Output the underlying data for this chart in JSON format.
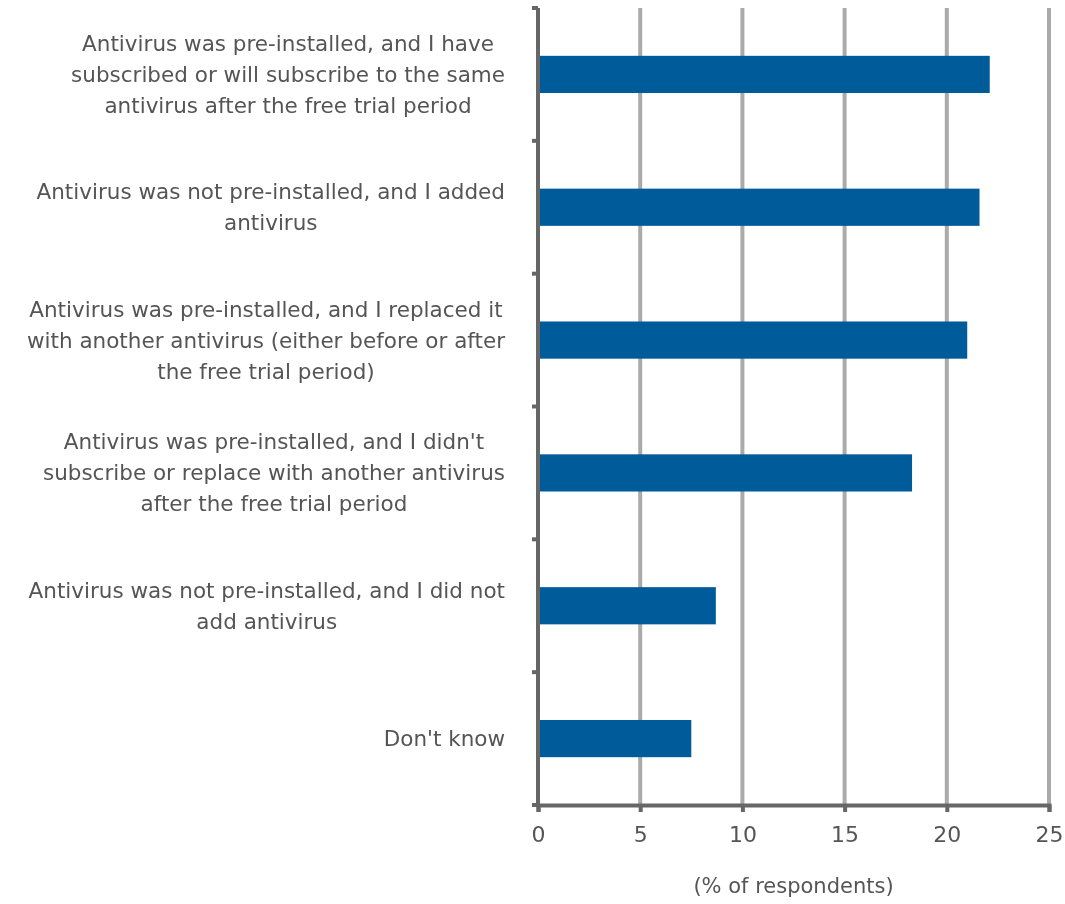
{
  "chart_data": {
    "type": "bar",
    "orientation": "horizontal",
    "xlabel": "(% of respondents)",
    "categories": [
      "Antivirus was pre-installed, and I have subscribed or will subscribe to the same antivirus after the free trial period",
      "Antivirus was not pre-installed, and I added antivirus",
      "Antivirus was pre-installed, and I replaced it with another antivirus (either before or after the free trial period)",
      "Antivirus was pre-installed, and I didn't subscribe or replace with another antivirus after the free trial period",
      "Antivirus was not pre-installed, and I did not add antivirus",
      "Don't know"
    ],
    "values": [
      22.1,
      21.6,
      21.0,
      18.3,
      8.7,
      7.5
    ],
    "color": "#005b9a",
    "xlim": [
      0,
      25
    ],
    "xticks": [
      0,
      5,
      10,
      15,
      20,
      25
    ],
    "grid": "x"
  }
}
